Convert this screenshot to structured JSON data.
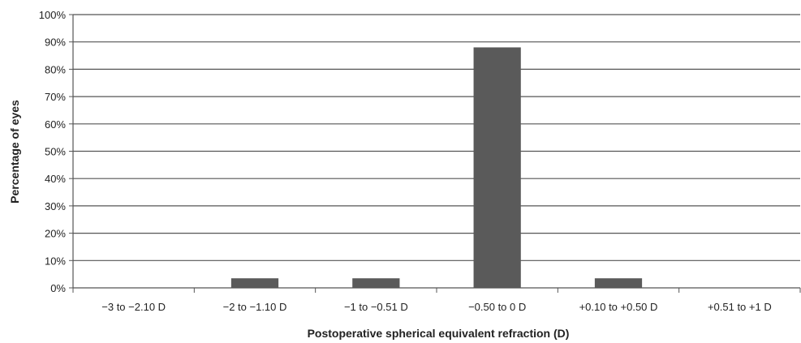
{
  "chart_data": {
    "type": "bar",
    "title": "",
    "xlabel": "Postoperative spherical equivalent refraction (D)",
    "ylabel": "Percentage of eyes",
    "categories": [
      "−3 to −2.10 D",
      "−2 to −1.10 D",
      "−1 to −0.51 D",
      "−0.50 to 0 D",
      "+0.10 to +0.50 D",
      "+0.51 to +1 D"
    ],
    "values": [
      0,
      3.5,
      3.5,
      88,
      3.5,
      0
    ],
    "ylim": [
      0,
      100
    ],
    "yticks": [
      0,
      10,
      20,
      30,
      40,
      50,
      60,
      70,
      80,
      90,
      100
    ],
    "ytick_labels": [
      "0%",
      "10%",
      "20%",
      "30%",
      "40%",
      "50%",
      "60%",
      "70%",
      "80%",
      "90%",
      "100%"
    ],
    "grid": true,
    "legend": "none",
    "bar_color": "#5a5a5a",
    "grid_color": "#555555",
    "axis_color": "#555555"
  }
}
